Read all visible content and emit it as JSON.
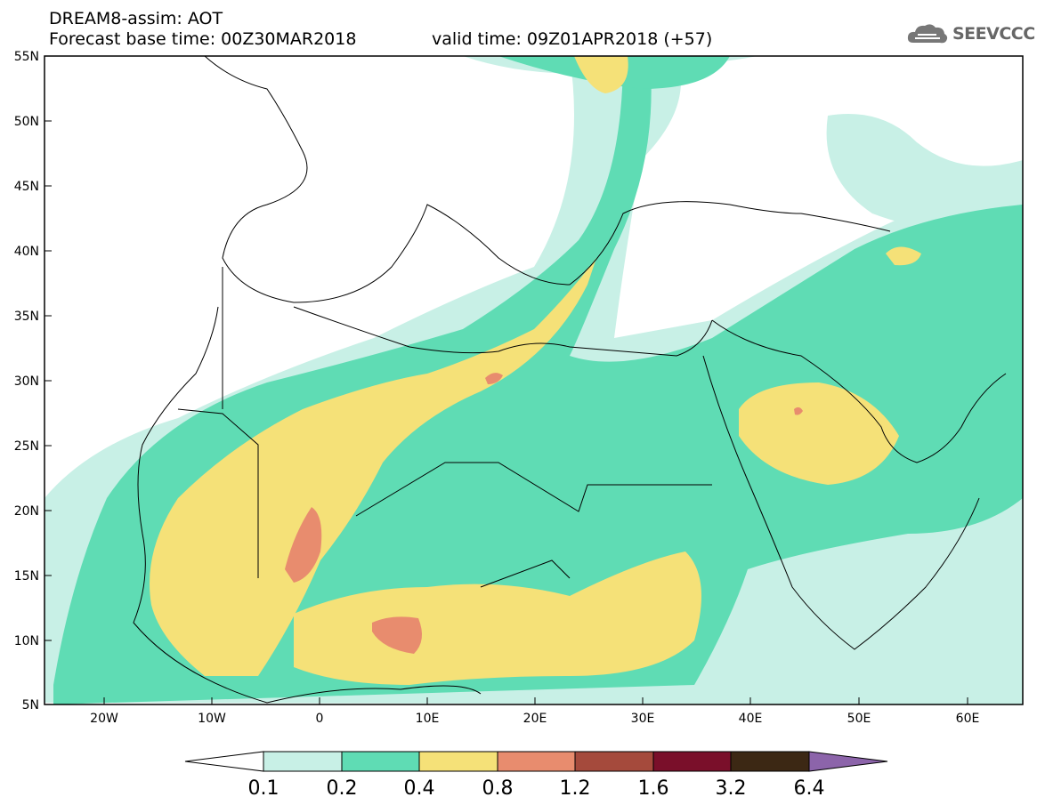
{
  "header": {
    "line1": "DREAM8-assim: AOT",
    "line2": "Forecast base time: 00Z30MAR2018",
    "line3": "valid time: 09Z01APR2018 (+57)"
  },
  "logo": {
    "text": "SEEVCCC",
    "icon": "cloud-icon"
  },
  "map": {
    "lat_ticks": [
      "55N",
      "50N",
      "45N",
      "40N",
      "35N",
      "30N",
      "25N",
      "20N",
      "15N",
      "10N",
      "5N"
    ],
    "lon_ticks": [
      "20W",
      "10W",
      "0",
      "10E",
      "20E",
      "30E",
      "40E",
      "50E",
      "60E"
    ]
  },
  "colorbar": {
    "labels": [
      "0.1",
      "0.2",
      "0.4",
      "0.8",
      "1.2",
      "1.6",
      "3.2",
      "6.4"
    ],
    "colors": [
      "#ffffff",
      "#c8f0e6",
      "#5fdcb4",
      "#f5e178",
      "#e88c6e",
      "#a54a3c",
      "#7a0f2a",
      "#3c2814",
      "#8c64aa"
    ]
  }
}
